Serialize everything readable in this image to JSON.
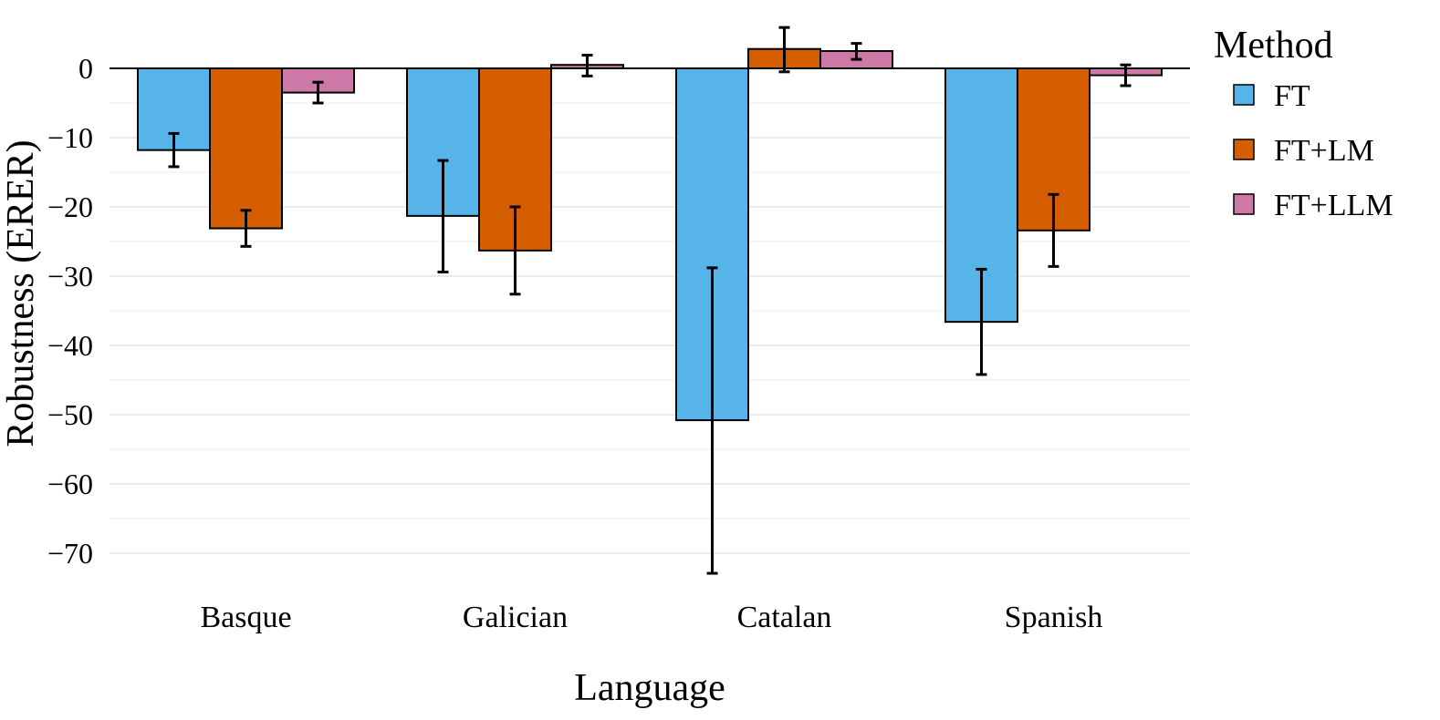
{
  "chart_data": {
    "type": "bar",
    "title": "",
    "xlabel": "Language",
    "ylabel": "Robustness (ERER)",
    "categories": [
      "Basque",
      "Galician",
      "Catalan",
      "Spanish"
    ],
    "ylim": [
      -75,
      6.5
    ],
    "yticks": [
      0,
      -10,
      -20,
      -30,
      -40,
      -50,
      -60,
      -70
    ],
    "ytick_labels": [
      "0",
      "−10",
      "−20",
      "−30",
      "−40",
      "−50",
      "−60",
      "−70"
    ],
    "grid": true,
    "legend": {
      "title": "Method",
      "position": "right"
    },
    "series": [
      {
        "name": "FT",
        "color": "#56B4E9",
        "values": [
          -11.8,
          -21.3,
          -50.8,
          -36.6
        ],
        "err_low": [
          -14.2,
          -29.4,
          -72.9,
          -44.2
        ],
        "err_high": [
          -9.4,
          -13.3,
          -28.8,
          -29.0
        ]
      },
      {
        "name": "FT+LM",
        "color": "#D55E00",
        "values": [
          -23.1,
          -26.3,
          2.8,
          -23.4
        ],
        "err_low": [
          -25.7,
          -32.6,
          -0.5,
          -28.6
        ],
        "err_high": [
          -20.5,
          -20.0,
          5.9,
          -18.2
        ]
      },
      {
        "name": "FT+LLM",
        "color": "#CC79A7",
        "values": [
          -3.5,
          0.5,
          2.5,
          -1.0
        ],
        "err_low": [
          -5.0,
          -1.1,
          1.3,
          -2.5
        ],
        "err_high": [
          -2.0,
          1.9,
          3.6,
          0.5
        ]
      }
    ]
  }
}
